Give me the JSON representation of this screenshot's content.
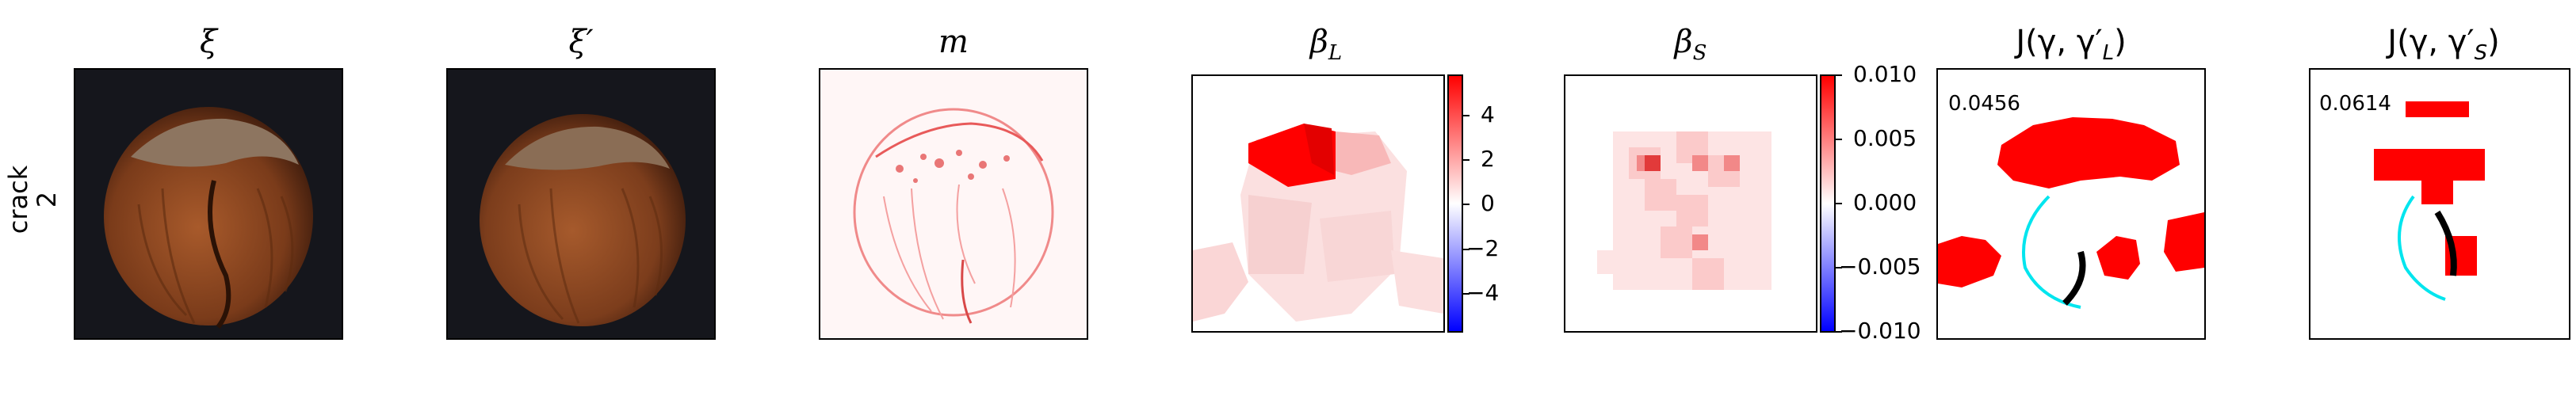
{
  "row": {
    "label_line1": "crack",
    "label_line2": "2"
  },
  "titles": {
    "xi": "ξ",
    "xi_prime": "ξ′",
    "m": "m",
    "beta_L_base": "β",
    "beta_L_sub": "L",
    "beta_S_base": "β",
    "beta_S_sub": "S",
    "jL": "J(γ, γ′",
    "jL_sub": "L",
    "jL_close": ")",
    "jS": "J(γ, γ′",
    "jS_sub": "S",
    "jS_close": ")"
  },
  "colorbar_L": {
    "ticks": [
      "4",
      "2",
      "0",
      "−2",
      "−4"
    ]
  },
  "colorbar_S": {
    "ticks": [
      "0.010",
      "0.005",
      "0.000",
      "−0.005",
      "−0.010"
    ]
  },
  "scores": {
    "jL": "0.0456",
    "jS": "0.0614"
  },
  "colors": {
    "red": "#ff0000",
    "cyan": "#00e5ee",
    "bg_dark": "#15161c",
    "nut": "#8a4a22"
  }
}
